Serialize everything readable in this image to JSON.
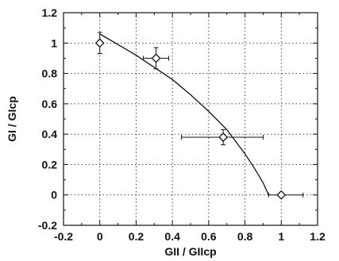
{
  "chart_data": {
    "type": "scatter",
    "xlabel": "GII / GIIcp",
    "ylabel": "GI / GIcp",
    "xlim": [
      -0.2,
      1.2
    ],
    "ylim": [
      -0.2,
      1.2
    ],
    "x_ticks": [
      "-0.2",
      "0",
      "0.2",
      "0.4",
      "0.6",
      "0.8",
      "1",
      "1.2"
    ],
    "y_ticks": [
      "-0.2",
      "0",
      "0.2",
      "0.4",
      "0.6",
      "0.8",
      "1",
      "1.2"
    ],
    "grid": true,
    "series": [
      {
        "marker": "diamond",
        "points": [
          {
            "x": 0.0,
            "y": 1.0,
            "xerr_low": 0.0,
            "xerr_high": 0.0,
            "yerr_low": 0.07,
            "yerr_high": 0.07
          },
          {
            "x": 0.31,
            "y": 0.9,
            "xerr_low": 0.07,
            "xerr_high": 0.07,
            "yerr_low": 0.07,
            "yerr_high": 0.07
          },
          {
            "x": 0.68,
            "y": 0.38,
            "xerr_low": 0.23,
            "xerr_high": 0.22,
            "yerr_low": 0.05,
            "yerr_high": 0.05
          },
          {
            "x": 1.0,
            "y": 0.0,
            "xerr_low": 0.07,
            "xerr_high": 0.12,
            "yerr_low": 0.0,
            "yerr_high": 0.0
          }
        ]
      }
    ],
    "fit_curve": {
      "x": [
        0.0,
        0.1,
        0.2,
        0.3,
        0.4,
        0.5,
        0.6,
        0.7,
        0.8,
        0.85,
        0.9,
        0.93
      ],
      "y": [
        1.06,
        0.99,
        0.92,
        0.84,
        0.76,
        0.66,
        0.55,
        0.43,
        0.27,
        0.18,
        0.08,
        0.0
      ]
    }
  }
}
